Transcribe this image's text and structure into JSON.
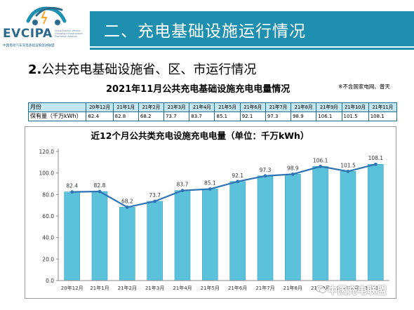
{
  "header": {
    "logo_text": "EVCIPA",
    "logo_en": "China Electric Vehicle Charging Infrastructure Promotion Alliance",
    "logo_sub": "中国电动汽车充电基础设施促进联盟",
    "slide_title": "二、充电基础设施运行情况",
    "brand_color": "#1e8fae"
  },
  "section": {
    "number": "2.",
    "title": "公共充电基础设施省、区、市运行情况"
  },
  "table": {
    "title": "2021年11月公共充电基础设施充电电量情况",
    "note": "※不含国家电网、普天",
    "row_labels": [
      "月份",
      "保有量（千万kWh）"
    ],
    "months": [
      "20年12月",
      "21年1月",
      "21年2月",
      "21年3月",
      "21年4月",
      "21年5月",
      "21年6月",
      "21年7月",
      "21年8月",
      "21年9月",
      "21年10月",
      "21年11月"
    ],
    "values": [
      "82.4",
      "82.8",
      "68.2",
      "73.7",
      "83.7",
      "85.1",
      "92.1",
      "97.3",
      "98.9",
      "106.1",
      "101.5",
      "108.1"
    ]
  },
  "chart_data": {
    "type": "bar",
    "title": "近12个月公共类充电设施充电电量（单位：千万kWh）",
    "categories": [
      "20年12月",
      "21年1月",
      "21年2月",
      "21年3月",
      "21年4月",
      "21年5月",
      "21年6月",
      "21年7月",
      "21年8月",
      "21年9月",
      "21年10月",
      "21年11月"
    ],
    "series": [
      {
        "values": [
          82.4,
          82.8,
          68.2,
          73.7,
          83.7,
          85.1,
          92.1,
          97.3,
          98.9,
          106.1,
          101.5,
          108.1
        ],
        "render": "bar",
        "color": "#5cc2dc"
      },
      {
        "values": [
          82.4,
          82.8,
          68.2,
          73.7,
          83.7,
          85.1,
          92.1,
          97.3,
          98.9,
          106.1,
          101.5,
          108.1
        ],
        "render": "line",
        "color": "#2e74b5"
      }
    ],
    "data_labels": [
      "82.4",
      "82.8",
      "68.2",
      "73.7",
      "83.7",
      "85.1",
      "92.1",
      "97.3",
      "98.9",
      "106.1",
      "101.5",
      "108.1"
    ],
    "y_ticks": [
      "0.0",
      "20.0",
      "40.0",
      "60.0",
      "80.0",
      "100.0",
      "120.0"
    ],
    "ylim": [
      0,
      120
    ],
    "grid": false,
    "legend": "none"
  },
  "watermark": {
    "text": "中国充电联盟",
    "icon": "wechat-icon"
  }
}
